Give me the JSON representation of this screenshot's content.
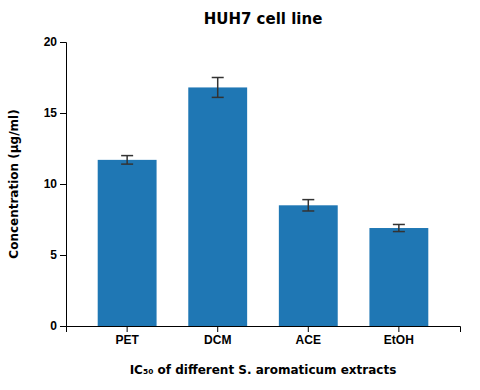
{
  "chart_data": {
    "type": "bar",
    "title": "HUH7 cell line",
    "xlabel": "IC₅₀ of different S. aromaticum extracts",
    "ylabel": "Concentration (μg/ml)",
    "categories": [
      "PET",
      "DCM",
      "ACE",
      "EtOH"
    ],
    "values": [
      11.7,
      16.8,
      8.5,
      6.9
    ],
    "errors": [
      0.3,
      0.7,
      0.4,
      0.25
    ],
    "ylim": [
      0,
      20
    ],
    "yticks": [
      0,
      5,
      10,
      15,
      20
    ],
    "grid": false
  }
}
